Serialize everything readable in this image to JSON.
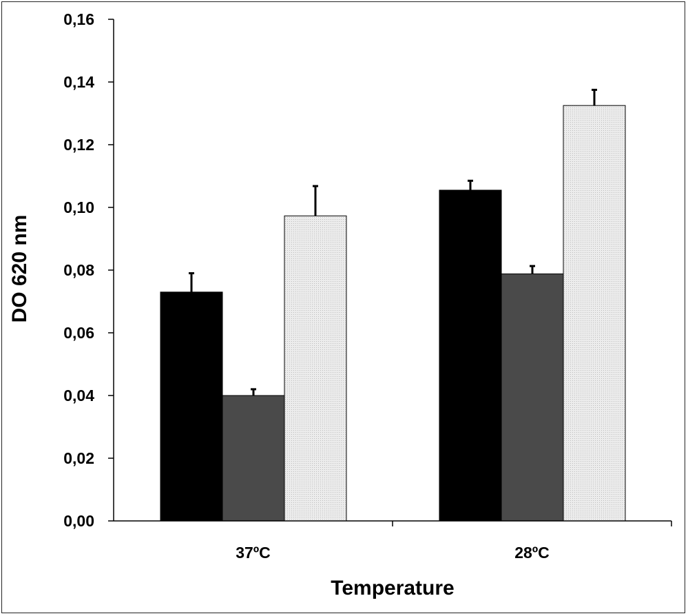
{
  "chart_data": {
    "type": "bar",
    "categories": [
      "37ºC",
      "28ºC"
    ],
    "series": [
      {
        "values": [
          0.073,
          0.1055
        ],
        "errors": [
          0.006,
          0.003
        ],
        "color": "#000000"
      },
      {
        "values": [
          0.04,
          0.0788
        ],
        "errors": [
          0.002,
          0.0025
        ],
        "color": "#4a4a4a"
      },
      {
        "values": [
          0.0973,
          0.1325
        ],
        "errors": [
          0.0095,
          0.005
        ],
        "color": "#e6e6e6"
      }
    ],
    "xlabel": "Temperature",
    "ylabel": "DO 620 nm",
    "ylim": [
      0,
      0.16
    ],
    "yticks": [
      "0,00",
      "0,02",
      "0,04",
      "0,06",
      "0,08",
      "0,10",
      "0,12",
      "0,14",
      "0,16"
    ],
    "grid": false,
    "legend": "none"
  }
}
